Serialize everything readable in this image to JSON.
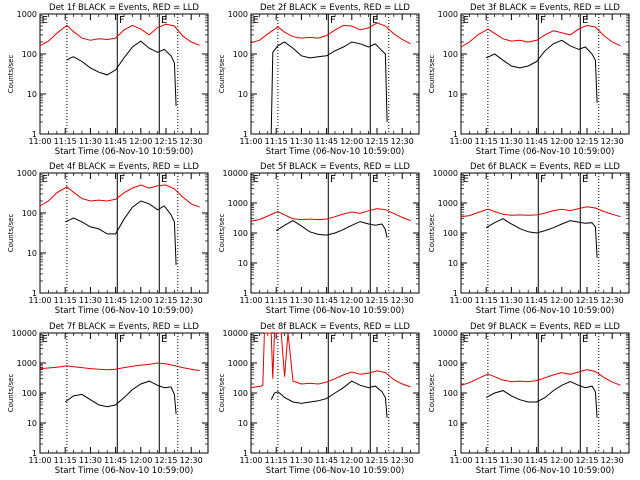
{
  "page": {
    "background": "#ffffff"
  },
  "colors": {
    "events": "#000000",
    "lld": "#e00000",
    "axis": "#000000"
  },
  "shared": {
    "x_ticks": [
      "11:00",
      "11:15",
      "11:30",
      "11:45",
      "12:00",
      "12:15",
      "12:30"
    ],
    "x_tick_minutes": [
      0,
      15,
      30,
      45,
      60,
      75,
      90
    ],
    "xlim_minutes": [
      0,
      100
    ],
    "xlabel": "Start Time (06-Nov-10 10:59:00)",
    "ylabel": "Counts/sec",
    "y_ticks": [
      "1",
      "10",
      "100",
      "1000",
      "10000"
    ],
    "y_tick_values": [
      1,
      10,
      100,
      1000,
      10000
    ],
    "dotted_lines_minutes": [
      16,
      82
    ],
    "solid_lines_minutes": [
      46,
      71
    ],
    "region_labels": [
      {
        "text": "E",
        "minute": 1
      },
      {
        "text": "F",
        "minute": 47
      },
      {
        "text": "E",
        "minute": 72
      }
    ]
  },
  "chart_data": [
    {
      "type": "line",
      "title": "Det 1f BLACK = Events, RED = LLD",
      "ylim": [
        1,
        1000
      ],
      "y_scale": "log",
      "series": [
        {
          "name": "LLD",
          "color": "#e00000",
          "x": [
            0,
            5,
            10,
            16,
            20,
            25,
            30,
            35,
            40,
            45,
            50,
            55,
            60,
            65,
            70,
            75,
            80,
            85,
            90,
            95
          ],
          "y": [
            160,
            210,
            330,
            520,
            360,
            250,
            220,
            240,
            230,
            250,
            400,
            520,
            420,
            300,
            460,
            560,
            500,
            280,
            200,
            165
          ]
        },
        {
          "name": "Events",
          "color": "#000000",
          "x": [
            16,
            18,
            20,
            25,
            30,
            35,
            40,
            45,
            50,
            55,
            60,
            65,
            70,
            74,
            78,
            80,
            81
          ],
          "y": [
            70,
            80,
            85,
            65,
            45,
            35,
            30,
            40,
            80,
            150,
            210,
            140,
            110,
            130,
            90,
            60,
            5
          ]
        }
      ]
    },
    {
      "type": "line",
      "title": "Det 2f BLACK = Events, RED = LLD",
      "ylim": [
        1,
        1000
      ],
      "y_scale": "log",
      "series": [
        {
          "name": "LLD",
          "color": "#e00000",
          "x": [
            0,
            5,
            10,
            16,
            20,
            25,
            30,
            35,
            40,
            45,
            50,
            55,
            60,
            65,
            70,
            75,
            80,
            85,
            90,
            95
          ],
          "y": [
            190,
            220,
            320,
            480,
            350,
            270,
            250,
            260,
            250,
            290,
            400,
            520,
            500,
            400,
            450,
            600,
            500,
            320,
            230,
            180
          ]
        },
        {
          "name": "Events",
          "color": "#000000",
          "x": [
            12,
            13,
            16,
            20,
            25,
            30,
            35,
            40,
            45,
            50,
            55,
            60,
            65,
            70,
            74,
            78,
            80,
            81
          ],
          "y": [
            1,
            110,
            160,
            200,
            140,
            90,
            80,
            85,
            90,
            120,
            150,
            200,
            180,
            150,
            180,
            120,
            100,
            2
          ]
        }
      ]
    },
    {
      "type": "line",
      "title": "Det 3f BLACK = Events, RED = LLD",
      "ylim": [
        1,
        1000
      ],
      "y_scale": "log",
      "series": [
        {
          "name": "LLD",
          "color": "#e00000",
          "x": [
            0,
            5,
            10,
            16,
            20,
            25,
            30,
            35,
            40,
            45,
            50,
            55,
            60,
            65,
            70,
            75,
            80,
            85,
            90,
            95
          ],
          "y": [
            150,
            200,
            300,
            420,
            330,
            240,
            210,
            220,
            200,
            220,
            300,
            380,
            340,
            300,
            420,
            520,
            470,
            290,
            200,
            160
          ]
        },
        {
          "name": "Events",
          "color": "#000000",
          "x": [
            15,
            20,
            25,
            30,
            35,
            40,
            45,
            50,
            55,
            60,
            65,
            70,
            74,
            78,
            80,
            81
          ],
          "y": [
            80,
            100,
            70,
            50,
            45,
            50,
            65,
            120,
            180,
            220,
            160,
            130,
            150,
            100,
            70,
            6
          ]
        }
      ]
    },
    {
      "type": "line",
      "title": "Det 4f BLACK = Events, RED = LLD",
      "ylim": [
        1,
        1000
      ],
      "y_scale": "log",
      "series": [
        {
          "name": "LLD",
          "color": "#e00000",
          "x": [
            0,
            5,
            10,
            16,
            20,
            25,
            30,
            35,
            40,
            45,
            50,
            55,
            60,
            65,
            70,
            75,
            80,
            85,
            90,
            95
          ],
          "y": [
            150,
            200,
            320,
            450,
            330,
            230,
            200,
            210,
            200,
            220,
            320,
            420,
            500,
            420,
            480,
            500,
            400,
            250,
            170,
            140
          ]
        },
        {
          "name": "Events",
          "color": "#000000",
          "x": [
            15,
            20,
            25,
            30,
            35,
            40,
            45,
            50,
            55,
            60,
            65,
            70,
            74,
            78,
            80,
            81
          ],
          "y": [
            60,
            75,
            60,
            45,
            40,
            30,
            30,
            70,
            140,
            200,
            170,
            120,
            150,
            90,
            60,
            5
          ]
        }
      ]
    },
    {
      "type": "line",
      "title": "Det 5f BLACK = Events, RED = LLD",
      "ylim": [
        1,
        10000
      ],
      "y_scale": "log",
      "series": [
        {
          "name": "LLD",
          "color": "#e00000",
          "x": [
            0,
            5,
            10,
            16,
            20,
            25,
            30,
            35,
            40,
            45,
            50,
            55,
            60,
            65,
            70,
            75,
            80,
            85,
            90,
            95
          ],
          "y": [
            250,
            280,
            370,
            520,
            400,
            300,
            280,
            290,
            280,
            290,
            350,
            430,
            500,
            450,
            550,
            650,
            600,
            450,
            330,
            260
          ]
        },
        {
          "name": "Events",
          "color": "#000000",
          "x": [
            15,
            20,
            25,
            30,
            35,
            40,
            45,
            50,
            55,
            60,
            65,
            70,
            74,
            78,
            80,
            81
          ],
          "y": [
            120,
            180,
            260,
            170,
            110,
            90,
            85,
            100,
            130,
            180,
            240,
            200,
            180,
            200,
            130,
            70
          ]
        }
      ]
    },
    {
      "type": "line",
      "title": "Det 6f BLACK = Events, RED = LLD",
      "ylim": [
        1,
        10000
      ],
      "y_scale": "log",
      "series": [
        {
          "name": "LLD",
          "color": "#e00000",
          "x": [
            0,
            5,
            10,
            16,
            20,
            25,
            30,
            35,
            40,
            45,
            50,
            55,
            60,
            65,
            70,
            75,
            80,
            85,
            90,
            95
          ],
          "y": [
            350,
            380,
            480,
            620,
            520,
            420,
            390,
            400,
            390,
            400,
            460,
            560,
            620,
            560,
            650,
            750,
            680,
            520,
            420,
            350
          ]
        },
        {
          "name": "Events",
          "color": "#000000",
          "x": [
            15,
            20,
            25,
            30,
            35,
            40,
            45,
            50,
            55,
            60,
            65,
            70,
            74,
            78,
            80,
            81
          ],
          "y": [
            150,
            220,
            300,
            200,
            140,
            110,
            100,
            120,
            150,
            200,
            260,
            230,
            210,
            220,
            160,
            15
          ]
        }
      ]
    },
    {
      "type": "line",
      "title": "Det 7f BLACK = Events, RED = LLD",
      "ylim": [
        1,
        10000
      ],
      "y_scale": "log",
      "series": [
        {
          "name": "LLD",
          "color": "#e00000",
          "x": [
            0,
            5,
            10,
            16,
            20,
            25,
            30,
            35,
            40,
            45,
            50,
            55,
            60,
            65,
            70,
            75,
            80,
            85,
            90,
            95
          ],
          "y": [
            650,
            680,
            720,
            800,
            750,
            700,
            650,
            620,
            600,
            620,
            700,
            780,
            850,
            900,
            1000,
            950,
            820,
            700,
            620,
            560
          ]
        },
        {
          "name": "Events",
          "color": "#000000",
          "x": [
            15,
            20,
            25,
            30,
            35,
            40,
            45,
            50,
            55,
            60,
            65,
            70,
            74,
            78,
            80,
            81
          ],
          "y": [
            50,
            80,
            90,
            60,
            40,
            35,
            40,
            70,
            130,
            200,
            250,
            180,
            150,
            160,
            90,
            20
          ]
        }
      ]
    },
    {
      "type": "line",
      "title": "Det 8f BLACK = Events, RED = LLD",
      "ylim": [
        1,
        10000
      ],
      "y_scale": "log",
      "series": [
        {
          "name": "LLD",
          "color": "#e00000",
          "x": [
            0,
            3,
            6,
            7,
            8,
            10,
            12,
            13,
            14,
            16,
            18,
            20,
            22,
            25,
            30,
            35,
            40,
            45,
            50,
            55,
            60,
            65,
            70,
            75,
            80,
            85,
            90,
            95
          ],
          "y": [
            150,
            160,
            170,
            180,
            10000,
            10000,
            10000,
            300,
            10000,
            10000,
            10000,
            350,
            10000,
            250,
            200,
            210,
            200,
            230,
            300,
            400,
            500,
            420,
            460,
            550,
            480,
            280,
            200,
            160
          ]
        },
        {
          "name": "Events",
          "color": "#000000",
          "x": [
            12,
            14,
            16,
            18,
            20,
            25,
            30,
            35,
            40,
            45,
            50,
            55,
            60,
            65,
            70,
            74,
            78,
            80,
            81
          ],
          "y": [
            60,
            100,
            110,
            90,
            70,
            50,
            45,
            50,
            55,
            65,
            100,
            150,
            250,
            180,
            150,
            170,
            110,
            70,
            15
          ]
        }
      ]
    },
    {
      "type": "line",
      "title": "Det 9f BLACK = Events, RED = LLD",
      "ylim": [
        1,
        10000
      ],
      "y_scale": "log",
      "series": [
        {
          "name": "LLD",
          "color": "#e00000",
          "x": [
            0,
            5,
            10,
            16,
            20,
            25,
            30,
            35,
            40,
            45,
            50,
            55,
            60,
            65,
            70,
            75,
            80,
            85,
            90,
            95
          ],
          "y": [
            180,
            220,
            300,
            430,
            350,
            270,
            240,
            250,
            240,
            260,
            320,
            400,
            480,
            420,
            500,
            600,
            520,
            330,
            230,
            180
          ]
        },
        {
          "name": "Events",
          "color": "#000000",
          "x": [
            15,
            20,
            25,
            30,
            35,
            40,
            45,
            50,
            55,
            60,
            65,
            70,
            74,
            78,
            80,
            81
          ],
          "y": [
            70,
            100,
            120,
            80,
            60,
            50,
            50,
            70,
            120,
            180,
            240,
            180,
            150,
            170,
            110,
            15
          ]
        }
      ]
    }
  ]
}
